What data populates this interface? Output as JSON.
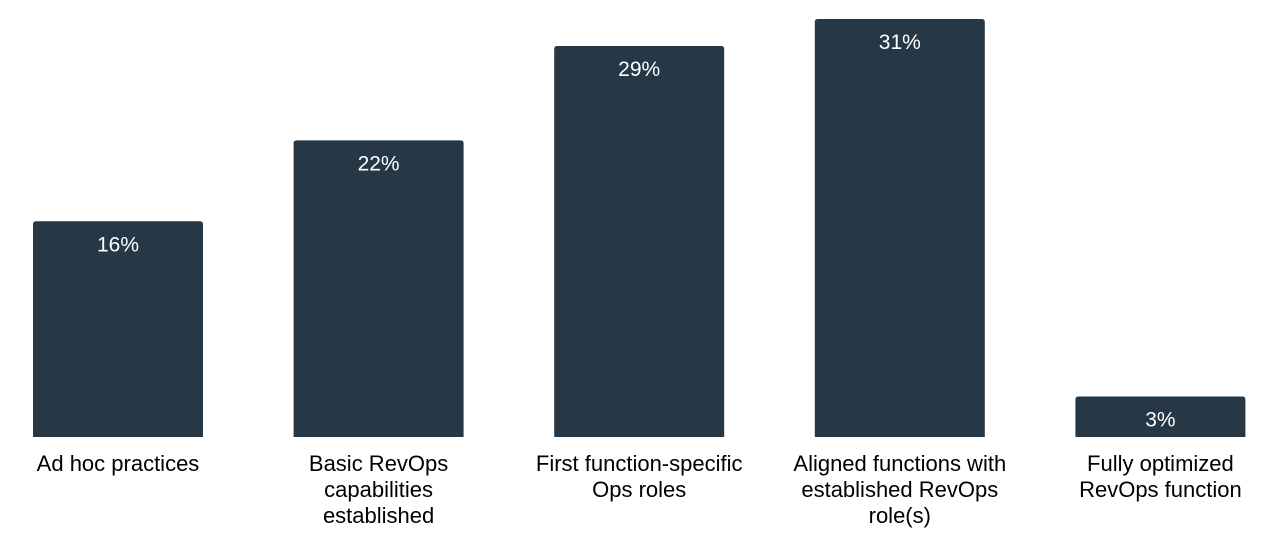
{
  "chart_data": {
    "type": "bar",
    "categories": [
      "Ad hoc practices",
      "Basic RevOps\ncapabilities\nestablished",
      "First function-specific\nOps roles",
      "Aligned functions with\nestablished RevOps\nrole(s)",
      "Fully optimized\nRevOps function"
    ],
    "values": [
      16,
      22,
      29,
      31,
      3
    ],
    "value_labels": [
      "16%",
      "22%",
      "29%",
      "31%",
      "3%"
    ],
    "color": "#263746"
  }
}
